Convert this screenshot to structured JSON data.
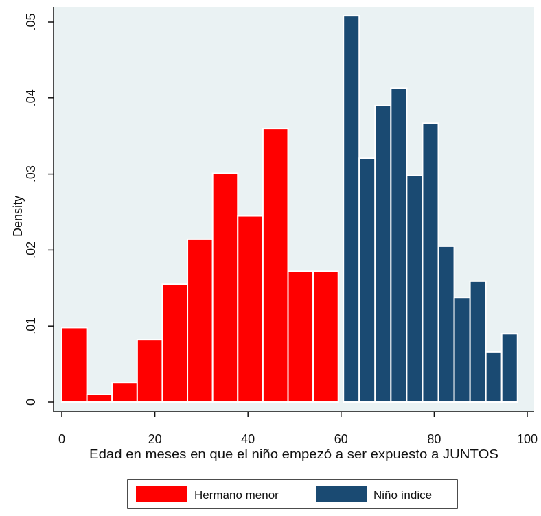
{
  "chart_data": {
    "type": "bar",
    "subtype": "histogram",
    "xlabel": "Edad en meses en que el niño empezó a ser expuesto a JUNTOS",
    "ylabel": "Density",
    "xlim": [
      0,
      100
    ],
    "ylim": [
      0,
      0.05
    ],
    "xticks": [
      {
        "value": 0,
        "label": "0"
      },
      {
        "value": 20,
        "label": "20"
      },
      {
        "value": 40,
        "label": "40"
      },
      {
        "value": 60,
        "label": "60"
      },
      {
        "value": 80,
        "label": "80"
      },
      {
        "value": 100,
        "label": "100"
      }
    ],
    "yticks": [
      {
        "value": 0,
        "label": "0"
      },
      {
        "value": 0.01,
        "label": ".01"
      },
      {
        "value": 0.02,
        "label": ".02"
      },
      {
        "value": 0.03,
        "label": ".03"
      },
      {
        "value": 0.04,
        "label": ".04"
      },
      {
        "value": 0.05,
        "label": ".05"
      }
    ],
    "grid": false,
    "legend_position": "bottom",
    "series": [
      {
        "name": "Hermano menor",
        "color": "#ff0000",
        "bins": [
          {
            "x0": 0.0,
            "x1": 5.4,
            "density": 0.0098
          },
          {
            "x0": 5.4,
            "x1": 10.8,
            "density": 0.001
          },
          {
            "x0": 10.8,
            "x1": 16.2,
            "density": 0.0026
          },
          {
            "x0": 16.2,
            "x1": 21.6,
            "density": 0.0082
          },
          {
            "x0": 21.6,
            "x1": 27.0,
            "density": 0.0155
          },
          {
            "x0": 27.0,
            "x1": 32.4,
            "density": 0.0214
          },
          {
            "x0": 32.4,
            "x1": 37.8,
            "density": 0.0301
          },
          {
            "x0": 37.8,
            "x1": 43.2,
            "density": 0.0245
          },
          {
            "x0": 43.2,
            "x1": 48.6,
            "density": 0.036
          },
          {
            "x0": 48.6,
            "x1": 54.0,
            "density": 0.0172
          },
          {
            "x0": 54.0,
            "x1": 59.4,
            "density": 0.0172
          }
        ]
      },
      {
        "name": "Niño índice",
        "color": "#1a4a72",
        "bins": [
          {
            "x0": 60.5,
            "x1": 63.9,
            "density": 0.0508
          },
          {
            "x0": 63.9,
            "x1": 67.3,
            "density": 0.0321
          },
          {
            "x0": 67.3,
            "x1": 70.7,
            "density": 0.039
          },
          {
            "x0": 70.7,
            "x1": 74.1,
            "density": 0.0413
          },
          {
            "x0": 74.1,
            "x1": 77.5,
            "density": 0.0298
          },
          {
            "x0": 77.5,
            "x1": 80.9,
            "density": 0.0367
          },
          {
            "x0": 80.9,
            "x1": 84.3,
            "density": 0.0205
          },
          {
            "x0": 84.3,
            "x1": 87.7,
            "density": 0.0137
          },
          {
            "x0": 87.7,
            "x1": 91.1,
            "density": 0.0159
          },
          {
            "x0": 91.1,
            "x1": 94.5,
            "density": 0.0066
          },
          {
            "x0": 94.5,
            "x1": 97.9,
            "density": 0.009
          }
        ]
      }
    ]
  },
  "colors": {
    "plot_background": "#eaf2f3",
    "outer_background": "#ffffff",
    "bar_outline": "#ffffff",
    "axis": "#111111"
  }
}
